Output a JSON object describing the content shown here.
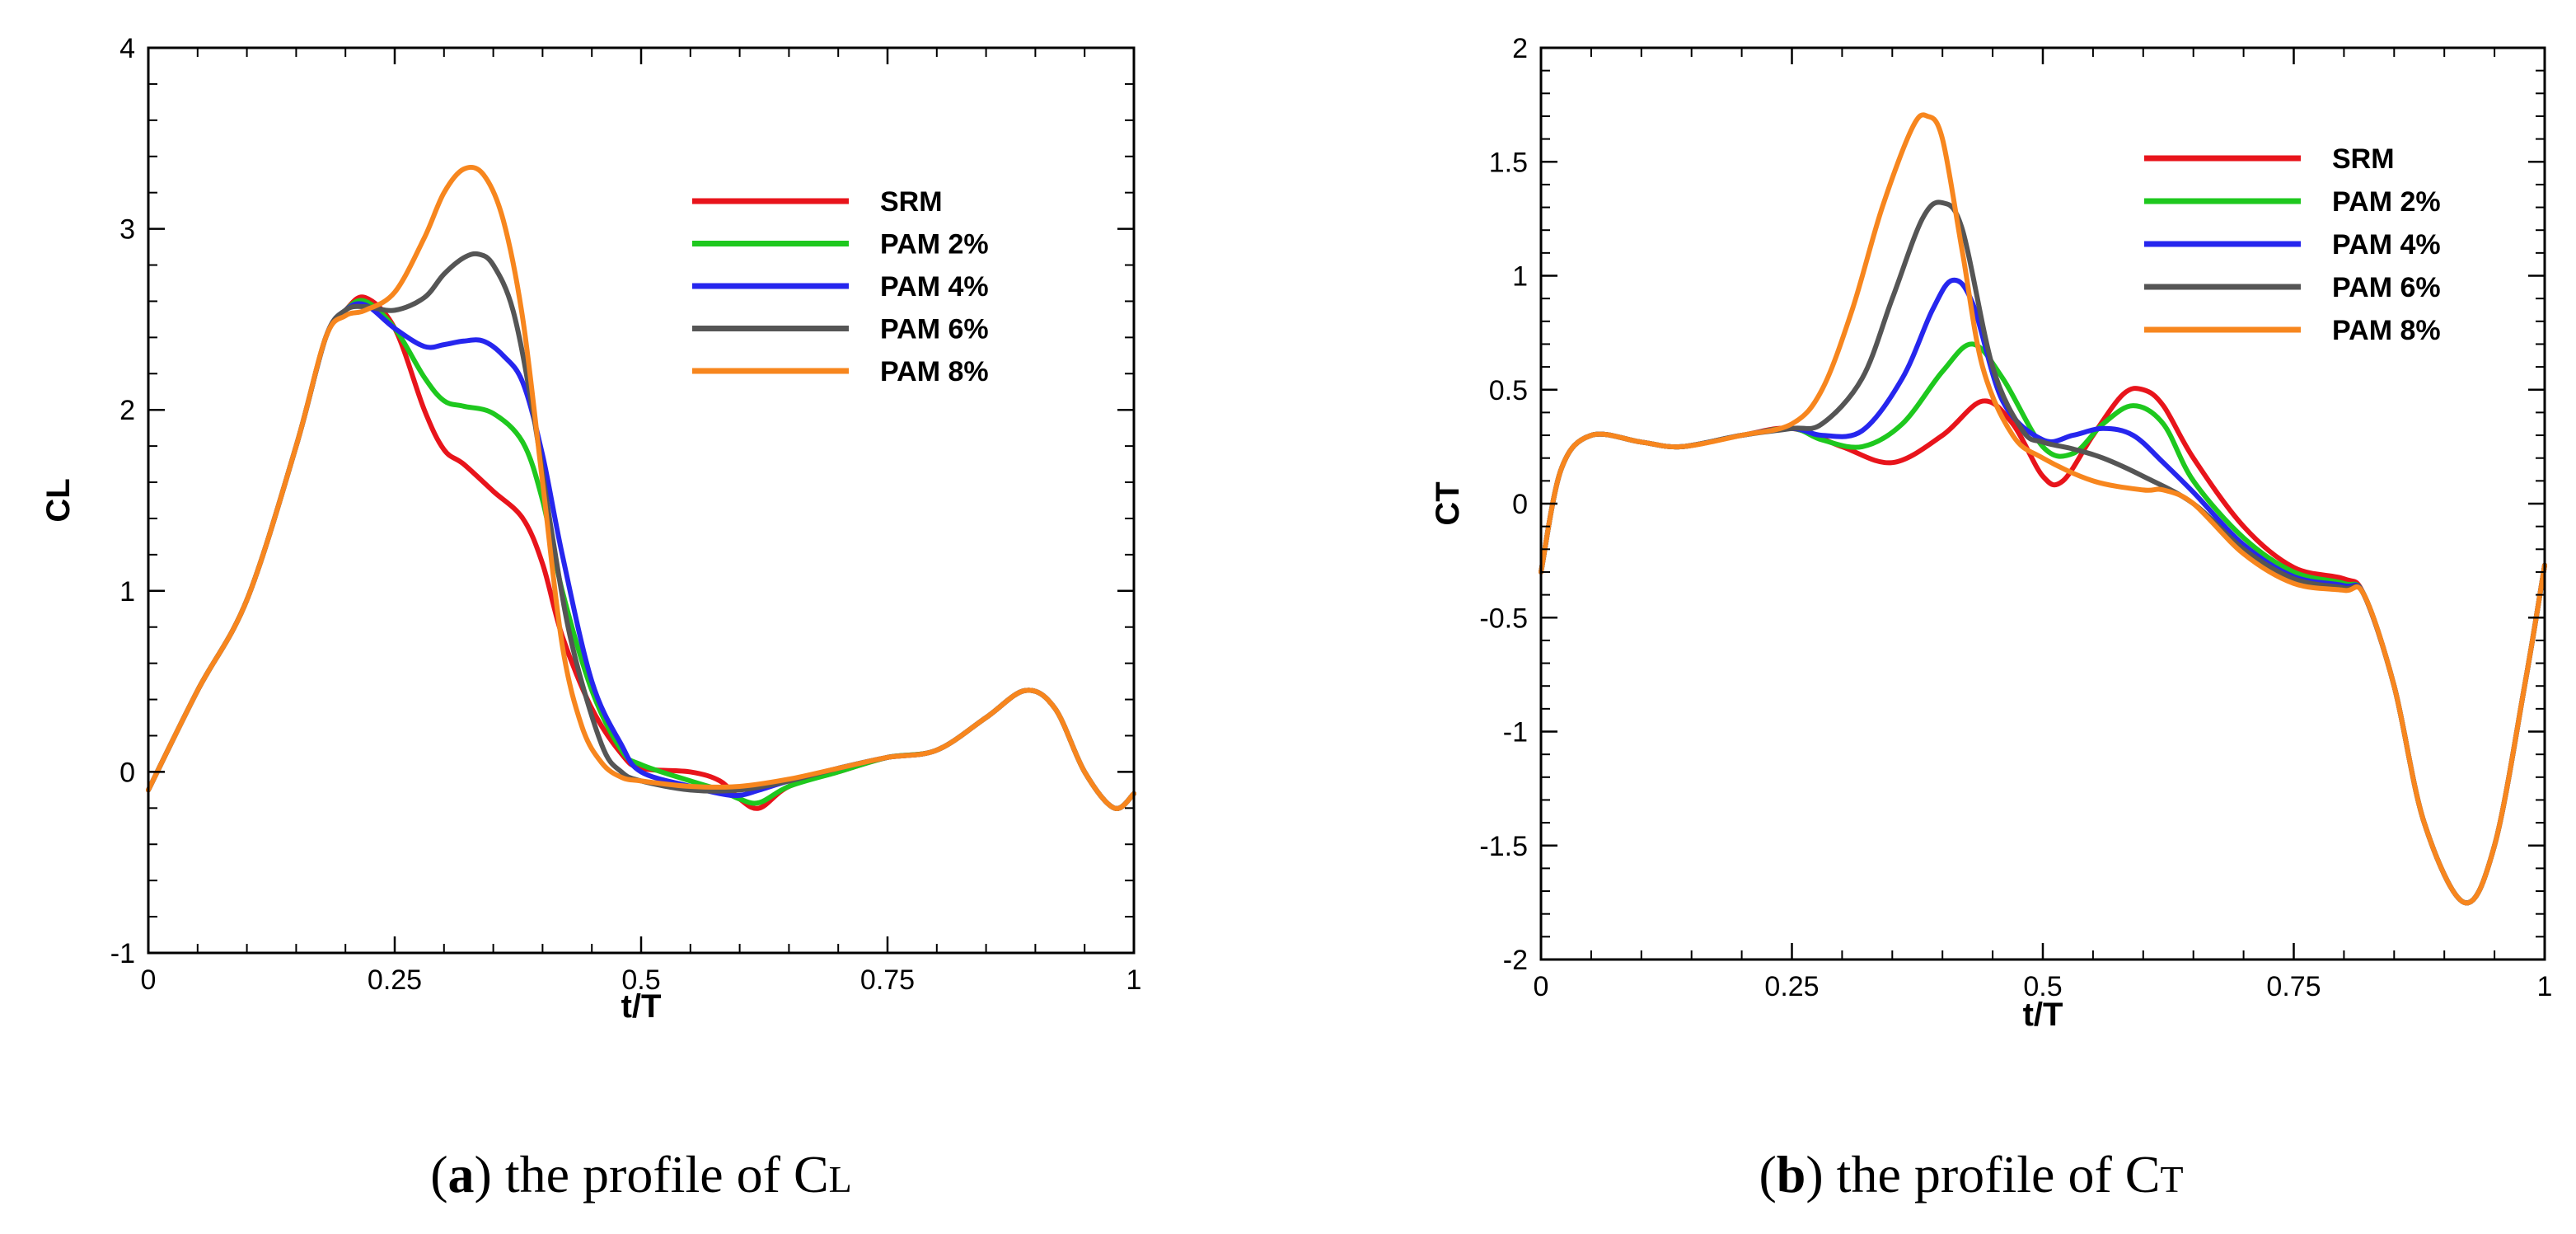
{
  "chart_data": [
    {
      "type": "line",
      "caption": {
        "tag": "a",
        "text": "the profile of C",
        "subscript": "L"
      },
      "xlabel": "t/T",
      "ylabel": "CL",
      "xlim": [
        0,
        1
      ],
      "ylim": [
        -1,
        4
      ],
      "xticks": [
        0,
        0.25,
        0.5,
        0.75,
        1
      ],
      "xtick_labels": [
        "0",
        "0.25",
        "0.5",
        "0.75",
        "1"
      ],
      "yticks": [
        -1,
        0,
        1,
        2,
        3,
        4
      ],
      "ytick_labels": [
        "-1",
        "0",
        "1",
        "2",
        "3",
        "4"
      ],
      "legend_position": "top-right",
      "series": [
        {
          "name": "SRM",
          "color": "#e8141b",
          "x": [
            0,
            0.05,
            0.1,
            0.15,
            0.18,
            0.2,
            0.22,
            0.25,
            0.28,
            0.3,
            0.32,
            0.35,
            0.38,
            0.4,
            0.42,
            0.45,
            0.48,
            0.5,
            0.55,
            0.58,
            0.6,
            0.62,
            0.65,
            0.7,
            0.75,
            0.8,
            0.85,
            0.89,
            0.92,
            0.95,
            0.98,
            1
          ],
          "values": [
            -0.1,
            0.45,
            0.95,
            1.8,
            2.4,
            2.55,
            2.62,
            2.45,
            2.0,
            1.78,
            1.7,
            1.55,
            1.4,
            1.15,
            0.75,
            0.35,
            0.1,
            0.02,
            0.0,
            -0.05,
            -0.15,
            -0.2,
            -0.08,
            0.0,
            0.08,
            0.12,
            0.3,
            0.45,
            0.35,
            0.0,
            -0.2,
            -0.12
          ]
        },
        {
          "name": "PAM 2%",
          "color": "#1ec81e",
          "x": [
            0,
            0.05,
            0.1,
            0.15,
            0.18,
            0.2,
            0.22,
            0.25,
            0.28,
            0.3,
            0.32,
            0.35,
            0.38,
            0.4,
            0.42,
            0.45,
            0.48,
            0.5,
            0.55,
            0.58,
            0.6,
            0.62,
            0.65,
            0.7,
            0.75,
            0.8,
            0.85,
            0.89,
            0.92,
            0.95,
            0.98,
            1
          ],
          "values": [
            -0.1,
            0.45,
            0.95,
            1.8,
            2.4,
            2.55,
            2.6,
            2.45,
            2.18,
            2.05,
            2.02,
            1.98,
            1.82,
            1.5,
            1.0,
            0.45,
            0.12,
            0.04,
            -0.05,
            -0.1,
            -0.15,
            -0.17,
            -0.08,
            0.0,
            0.08,
            0.12,
            0.3,
            0.45,
            0.35,
            0.0,
            -0.2,
            -0.12
          ]
        },
        {
          "name": "PAM 4%",
          "color": "#2626ee",
          "x": [
            0,
            0.05,
            0.1,
            0.15,
            0.18,
            0.2,
            0.22,
            0.25,
            0.28,
            0.3,
            0.32,
            0.34,
            0.36,
            0.38,
            0.4,
            0.42,
            0.45,
            0.48,
            0.5,
            0.55,
            0.58,
            0.6,
            0.62,
            0.65,
            0.7,
            0.75,
            0.8,
            0.85,
            0.89,
            0.92,
            0.95,
            0.98,
            1
          ],
          "values": [
            -0.1,
            0.45,
            0.95,
            1.8,
            2.4,
            2.55,
            2.58,
            2.45,
            2.35,
            2.36,
            2.38,
            2.38,
            2.3,
            2.15,
            1.75,
            1.2,
            0.5,
            0.15,
            0.0,
            -0.08,
            -0.12,
            -0.13,
            -0.1,
            -0.05,
            0.02,
            0.08,
            0.12,
            0.3,
            0.45,
            0.35,
            0.0,
            -0.2,
            -0.12
          ]
        },
        {
          "name": "PAM 6%",
          "color": "#555555",
          "x": [
            0,
            0.05,
            0.1,
            0.15,
            0.18,
            0.2,
            0.22,
            0.25,
            0.28,
            0.3,
            0.32,
            0.335,
            0.35,
            0.37,
            0.39,
            0.41,
            0.43,
            0.46,
            0.48,
            0.5,
            0.55,
            0.6,
            0.65,
            0.7,
            0.75,
            0.8,
            0.85,
            0.89,
            0.92,
            0.95,
            0.98,
            1
          ],
          "values": [
            -0.1,
            0.45,
            0.95,
            1.8,
            2.4,
            2.55,
            2.57,
            2.55,
            2.62,
            2.75,
            2.84,
            2.86,
            2.8,
            2.55,
            2.0,
            1.3,
            0.7,
            0.15,
            0.0,
            -0.05,
            -0.1,
            -0.1,
            -0.05,
            0.02,
            0.08,
            0.12,
            0.3,
            0.45,
            0.35,
            0.0,
            -0.2,
            -0.12
          ]
        },
        {
          "name": "PAM 8%",
          "color": "#f7861e",
          "x": [
            0,
            0.05,
            0.1,
            0.15,
            0.18,
            0.2,
            0.22,
            0.25,
            0.28,
            0.3,
            0.32,
            0.34,
            0.36,
            0.38,
            0.4,
            0.42,
            0.44,
            0.46,
            0.48,
            0.5,
            0.55,
            0.6,
            0.65,
            0.7,
            0.75,
            0.8,
            0.85,
            0.89,
            0.92,
            0.95,
            0.98,
            1
          ],
          "values": [
            -0.1,
            0.45,
            0.95,
            1.8,
            2.4,
            2.52,
            2.55,
            2.65,
            2.95,
            3.2,
            3.33,
            3.3,
            3.05,
            2.5,
            1.6,
            0.7,
            0.25,
            0.05,
            -0.03,
            -0.05,
            -0.08,
            -0.08,
            -0.04,
            0.02,
            0.08,
            0.12,
            0.3,
            0.45,
            0.35,
            0.0,
            -0.2,
            -0.12
          ]
        }
      ]
    },
    {
      "type": "line",
      "caption": {
        "tag": "b",
        "text": "the profile of C",
        "subscript": "T"
      },
      "xlabel": "t/T",
      "ylabel": "CT",
      "xlim": [
        0,
        1
      ],
      "ylim": [
        -2,
        2
      ],
      "xticks": [
        0,
        0.25,
        0.5,
        0.75,
        1
      ],
      "xtick_labels": [
        "0",
        "0.25",
        "0.5",
        "0.75",
        "1"
      ],
      "yticks": [
        -2,
        -1.5,
        -1,
        -0.5,
        0,
        0.5,
        1,
        1.5,
        2
      ],
      "ytick_labels": [
        "-2",
        "-1.5",
        "-1",
        "-0.5",
        "0",
        "0.5",
        "1",
        "1.5",
        "2"
      ],
      "legend_position": "top-right",
      "series": [
        {
          "name": "SRM",
          "color": "#e8141b",
          "x": [
            0,
            0.02,
            0.05,
            0.1,
            0.14,
            0.2,
            0.25,
            0.3,
            0.35,
            0.4,
            0.44,
            0.47,
            0.5,
            0.52,
            0.55,
            0.58,
            0.6,
            0.62,
            0.65,
            0.7,
            0.75,
            0.8,
            0.82,
            0.85,
            0.88,
            0.92,
            0.95,
            0.98,
            1
          ],
          "values": [
            -0.3,
            0.15,
            0.3,
            0.27,
            0.25,
            0.3,
            0.33,
            0.25,
            0.18,
            0.3,
            0.45,
            0.35,
            0.12,
            0.1,
            0.3,
            0.48,
            0.5,
            0.43,
            0.2,
            -0.1,
            -0.28,
            -0.33,
            -0.4,
            -0.8,
            -1.4,
            -1.75,
            -1.5,
            -0.8,
            -0.27
          ]
        },
        {
          "name": "PAM 2%",
          "color": "#1ec81e",
          "x": [
            0,
            0.02,
            0.05,
            0.1,
            0.14,
            0.2,
            0.25,
            0.28,
            0.32,
            0.36,
            0.4,
            0.43,
            0.46,
            0.5,
            0.53,
            0.56,
            0.59,
            0.62,
            0.65,
            0.7,
            0.75,
            0.8,
            0.82,
            0.85,
            0.88,
            0.92,
            0.95,
            0.98,
            1
          ],
          "values": [
            -0.3,
            0.15,
            0.3,
            0.27,
            0.25,
            0.3,
            0.33,
            0.28,
            0.25,
            0.35,
            0.58,
            0.7,
            0.55,
            0.25,
            0.22,
            0.35,
            0.43,
            0.35,
            0.1,
            -0.15,
            -0.3,
            -0.35,
            -0.4,
            -0.8,
            -1.4,
            -1.75,
            -1.5,
            -0.8,
            -0.27
          ]
        },
        {
          "name": "PAM 4%",
          "color": "#2626ee",
          "x": [
            0,
            0.02,
            0.05,
            0.1,
            0.14,
            0.2,
            0.25,
            0.28,
            0.32,
            0.36,
            0.39,
            0.41,
            0.43,
            0.46,
            0.5,
            0.53,
            0.56,
            0.59,
            0.62,
            0.65,
            0.7,
            0.75,
            0.8,
            0.82,
            0.85,
            0.88,
            0.92,
            0.95,
            0.98,
            1
          ],
          "values": [
            -0.3,
            0.15,
            0.3,
            0.27,
            0.25,
            0.3,
            0.33,
            0.3,
            0.32,
            0.55,
            0.85,
            0.98,
            0.88,
            0.45,
            0.28,
            0.3,
            0.33,
            0.3,
            0.18,
            0.05,
            -0.18,
            -0.32,
            -0.36,
            -0.4,
            -0.8,
            -1.4,
            -1.75,
            -1.5,
            -0.8,
            -0.27
          ]
        },
        {
          "name": "PAM 6%",
          "color": "#555555",
          "x": [
            0,
            0.02,
            0.05,
            0.1,
            0.14,
            0.2,
            0.25,
            0.28,
            0.32,
            0.35,
            0.38,
            0.4,
            0.42,
            0.45,
            0.48,
            0.5,
            0.53,
            0.56,
            0.6,
            0.65,
            0.7,
            0.75,
            0.8,
            0.82,
            0.85,
            0.88,
            0.92,
            0.95,
            0.98,
            1
          ],
          "values": [
            -0.3,
            0.15,
            0.3,
            0.27,
            0.25,
            0.3,
            0.33,
            0.35,
            0.55,
            0.9,
            1.25,
            1.32,
            1.2,
            0.6,
            0.32,
            0.27,
            0.24,
            0.2,
            0.12,
            0.0,
            -0.2,
            -0.33,
            -0.37,
            -0.4,
            -0.8,
            -1.4,
            -1.75,
            -1.5,
            -0.8,
            -0.27
          ]
        },
        {
          "name": "PAM 8%",
          "color": "#f7861e",
          "x": [
            0,
            0.02,
            0.05,
            0.1,
            0.14,
            0.2,
            0.25,
            0.28,
            0.31,
            0.34,
            0.37,
            0.385,
            0.4,
            0.42,
            0.44,
            0.47,
            0.5,
            0.55,
            0.6,
            0.62,
            0.65,
            0.7,
            0.75,
            0.8,
            0.82,
            0.85,
            0.88,
            0.92,
            0.95,
            0.98,
            1
          ],
          "values": [
            -0.3,
            0.15,
            0.3,
            0.27,
            0.25,
            0.3,
            0.35,
            0.5,
            0.85,
            1.3,
            1.65,
            1.7,
            1.6,
            1.1,
            0.6,
            0.3,
            0.2,
            0.1,
            0.06,
            0.06,
            0.0,
            -0.22,
            -0.35,
            -0.38,
            -0.4,
            -0.8,
            -1.4,
            -1.75,
            -1.5,
            -0.8,
            -0.27
          ]
        }
      ]
    }
  ]
}
